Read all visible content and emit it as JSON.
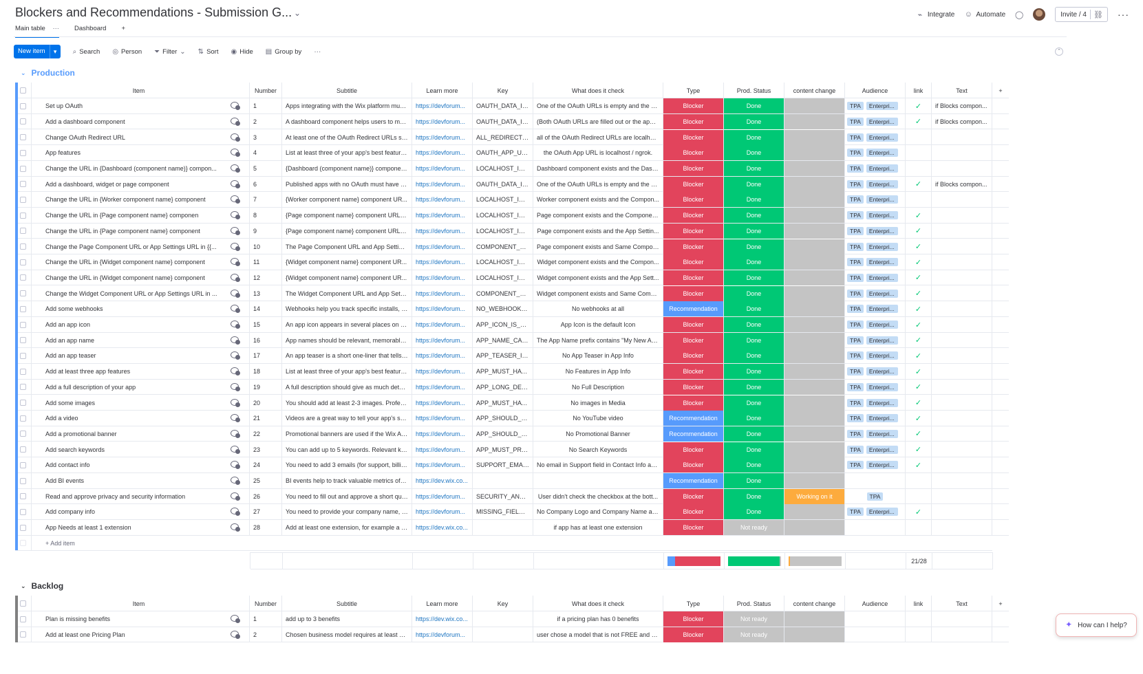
{
  "board": {
    "title": "Blockers and Recommendations - Submission G...",
    "tabs": [
      {
        "label": "Main table"
      },
      {
        "label": "Dashboard"
      }
    ],
    "add_tab": "+"
  },
  "header_actions": {
    "integrate": "Integrate",
    "automate": "Automate",
    "invite": "Invite / 4"
  },
  "toolbar": {
    "new_item": "New item",
    "search": "Search",
    "person": "Person",
    "filter": "Filter",
    "sort": "Sort",
    "hide": "Hide",
    "group_by": "Group by"
  },
  "columns": {
    "item": "Item",
    "number": "Number",
    "subtitle": "Subtitle",
    "learn_more": "Learn more",
    "key": "Key",
    "what": "What does it check",
    "type": "Type",
    "status": "Prod. Status",
    "content": "content change",
    "audience": "Audience",
    "link": "link",
    "text": "Text"
  },
  "colors": {
    "blocker": "#e2445c",
    "recommendation": "#579bfc",
    "done": "#00c875",
    "not_ready": "#c4c4c4",
    "working": "#fdab3d",
    "production_group": "#579bfc",
    "backlog_group": "#808080"
  },
  "production": {
    "title": "Production",
    "add_item": "+ Add item",
    "link_summary": "21/28",
    "type_summary": {
      "recommendation": 4,
      "blocker": 24
    },
    "status_summary": {
      "done": 27,
      "not_ready": 1
    },
    "content_summary": {
      "working": 1,
      "empty": 27
    },
    "rows": [
      {
        "item": "Set up OAuth",
        "num": "1",
        "sub": "Apps integrating with the Wix platform mus...",
        "learn": "https://devforum...",
        "key": "OAUTH_DATA_IS...",
        "what": "One of the OAuth URLs is empty and the a...",
        "type": "Blocker",
        "status": "Done",
        "content": "",
        "aud": [
          "TPA",
          "Enterpri..."
        ],
        "link": "✓",
        "text": "if Blocks compon..."
      },
      {
        "item": "Add a dashboard component",
        "num": "2",
        "sub": "A dashboard component helps users to ma...",
        "learn": "https://devforum...",
        "key": "OAUTH_DATA_IS...",
        "what": "(Both OAuth URLs are filled out or the app ...",
        "type": "Blocker",
        "status": "Done",
        "content": "",
        "aud": [
          "TPA",
          "Enterpri..."
        ],
        "link": "✓",
        "text": "if Blocks compon..."
      },
      {
        "item": "Change OAuth Redirect URL",
        "num": "3",
        "sub": "At least one of the OAuth Redirect URLs sh...",
        "learn": "https://devforum...",
        "key": "ALL_REDIRECT_U...",
        "what": "all of the OAuth Redirect URLs are localhos...",
        "type": "Blocker",
        "status": "Done",
        "content": "",
        "aud": [
          "TPA",
          "Enterpri..."
        ],
        "link": "",
        "text": ""
      },
      {
        "item": "App features",
        "num": "4",
        "sub": "List at least three of your app's best feature...",
        "learn": "https://devforum...",
        "key": "OAUTH_APP_URL...",
        "what": "the OAuth App URL is localhost / ngrok.",
        "type": "Blocker",
        "status": "Done",
        "content": "",
        "aud": [
          "TPA",
          "Enterpri..."
        ],
        "link": "",
        "text": ""
      },
      {
        "item": "Change the URL in {Dashboard (component name)} compon...",
        "num": "5",
        "sub": "{Dashboard (component name)} componen...",
        "learn": "https://devforum...",
        "key": "LOCALHOST_IS_...",
        "what": "Dashboard component exists and the Dash...",
        "type": "Blocker",
        "status": "Done",
        "content": "",
        "aud": [
          "TPA",
          "Enterpri..."
        ],
        "link": "",
        "text": ""
      },
      {
        "item": "Add a dashboard, widget or page component",
        "num": "6",
        "sub": "Published apps with no OAuth must have a ...",
        "learn": "https://devforum...",
        "key": "OAUTH_DATA_IS...",
        "what": "One of the OAuth URLs is empty and the a...",
        "type": "Blocker",
        "status": "Done",
        "content": "",
        "aud": [
          "TPA",
          "Enterpri..."
        ],
        "link": "✓",
        "text": "if Blocks compon..."
      },
      {
        "item": "Change the URL in {Worker component name} component",
        "num": "7",
        "sub": "{Worker component name} component UR...",
        "learn": "https://devforum...",
        "key": "LOCALHOST_IS_...",
        "what": "Worker component exists and the Compon...",
        "type": "Blocker",
        "status": "Done",
        "content": "",
        "aud": [
          "TPA",
          "Enterpri..."
        ],
        "link": "",
        "text": ""
      },
      {
        "item": "Change the URL in {Page component name} componen",
        "num": "8",
        "sub": "{Page component name} component URLs ...",
        "learn": "https://devforum...",
        "key": "LOCALHOST_IS_...",
        "what": "Page component exists and the Componen...",
        "type": "Blocker",
        "status": "Done",
        "content": "",
        "aud": [
          "TPA",
          "Enterpri..."
        ],
        "link": "✓",
        "text": ""
      },
      {
        "item": "Change the URL in {Page component name} component",
        "num": "9",
        "sub": "{Page component name} component URLs ...",
        "learn": "https://devforum...",
        "key": "LOCALHOST_IS_...",
        "what": "Page component exists and the App Settin...",
        "type": "Blocker",
        "status": "Done",
        "content": "",
        "aud": [
          "TPA",
          "Enterpri..."
        ],
        "link": "✓",
        "text": ""
      },
      {
        "item": "Change the Page Component URL or App Settings URL in {{...",
        "num": "10",
        "sub": "The Page Component URL and App Setting...",
        "learn": "https://devforum...",
        "key": "COMPONENT_U...",
        "what": "Page component exists and Same Compon...",
        "type": "Blocker",
        "status": "Done",
        "content": "",
        "aud": [
          "TPA",
          "Enterpri..."
        ],
        "link": "✓",
        "text": ""
      },
      {
        "item": "Change the URL in {Widget component name} component",
        "num": "11",
        "sub": "{Widget component name} component UR...",
        "learn": "https://devforum...",
        "key": "LOCALHOST_IS_...",
        "what": "Widget component exists and the Compon...",
        "type": "Blocker",
        "status": "Done",
        "content": "",
        "aud": [
          "TPA",
          "Enterpri..."
        ],
        "link": "✓",
        "text": ""
      },
      {
        "item": "Change the URL in {Widget component name} component",
        "num": "12",
        "sub": "{Widget component name} component UR...",
        "learn": "https://devforum...",
        "key": "LOCALHOST_IS_...",
        "what": "Widget component exists and the App Sett...",
        "type": "Blocker",
        "status": "Done",
        "content": "",
        "aud": [
          "TPA",
          "Enterpri..."
        ],
        "link": "✓",
        "text": ""
      },
      {
        "item": "Change the Widget Component URL or App Settings URL in ...",
        "num": "13",
        "sub": "The Widget Component URL and App Setti...",
        "learn": "https://devforum...",
        "key": "COMPONENT_U...",
        "what": "Widget component exists and Same Comp...",
        "type": "Blocker",
        "status": "Done",
        "content": "",
        "aud": [
          "TPA",
          "Enterpri..."
        ],
        "link": "✓",
        "text": ""
      },
      {
        "item": "Add some webhooks",
        "num": "14",
        "sub": "Webhooks help you track specific installs, u...",
        "learn": "https://devforum...",
        "key": "NO_WEBHOOKS_...",
        "what": "No webhooks at all",
        "type": "Recommendation",
        "status": "Done",
        "content": "",
        "aud": [
          "TPA",
          "Enterpri..."
        ],
        "link": "✓",
        "text": ""
      },
      {
        "item": "Add an app icon",
        "num": "15",
        "sub": "An app icon appears in several places on th...",
        "learn": "https://devforum...",
        "key": "APP_ICON_IS_MI...",
        "what": "App Icon is the default Icon",
        "type": "Blocker",
        "status": "Done",
        "content": "",
        "aud": [
          "TPA",
          "Enterpri..."
        ],
        "link": "✓",
        "text": ""
      },
      {
        "item": "Add an app name",
        "num": "16",
        "sub": "App names should be relevant, memorable ...",
        "learn": "https://devforum...",
        "key": "APP_NAME_CAN...",
        "what": "The App Name prefix contains \"My New Ap...",
        "type": "Blocker",
        "status": "Done",
        "content": "",
        "aud": [
          "TPA",
          "Enterpri..."
        ],
        "link": "✓",
        "text": ""
      },
      {
        "item": "Add an app teaser",
        "num": "17",
        "sub": "An app teaser is a short one-liner that tells ...",
        "learn": "https://devforum...",
        "key": "APP_TEASER_IS_...",
        "what": "No App Teaser in App Info",
        "type": "Blocker",
        "status": "Done",
        "content": "",
        "aud": [
          "TPA",
          "Enterpri..."
        ],
        "link": "✓",
        "text": ""
      },
      {
        "item": "Add at least three app features",
        "num": "18",
        "sub": "List at least three of your app's best feature...",
        "learn": "https://devforum...",
        "key": "APP_MUST_HAVE...",
        "what": "No Features in App Info",
        "type": "Blocker",
        "status": "Done",
        "content": "",
        "aud": [
          "TPA",
          "Enterpri..."
        ],
        "link": "✓",
        "text": ""
      },
      {
        "item": "Add a full description of your app",
        "num": "19",
        "sub": "A full description should give as much detai...",
        "learn": "https://devforum...",
        "key": "APP_LONG_DESC...",
        "what": "No Full Description",
        "type": "Blocker",
        "status": "Done",
        "content": "",
        "aud": [
          "TPA",
          "Enterpri..."
        ],
        "link": "✓",
        "text": ""
      },
      {
        "item": "Add some images",
        "num": "20",
        "sub": "You should add at least 2-3 images. Professi...",
        "learn": "https://devforum...",
        "key": "APP_MUST_HAVE...",
        "what": "No images in Media",
        "type": "Blocker",
        "status": "Done",
        "content": "",
        "aud": [
          "TPA",
          "Enterpri..."
        ],
        "link": "✓",
        "text": ""
      },
      {
        "item": "Add a video",
        "num": "21",
        "sub": "Videos are a great way to tell your app's sto...",
        "learn": "https://devforum...",
        "key": "APP_SHOULD_PR...",
        "what": "No YouTube video",
        "type": "Recommendation",
        "status": "Done",
        "content": "",
        "aud": [
          "TPA",
          "Enterpri..."
        ],
        "link": "✓",
        "text": ""
      },
      {
        "item": "Add a promotional banner",
        "num": "22",
        "sub": "Promotional banners are used if the Wix Ap...",
        "learn": "https://devforum...",
        "key": "APP_SHOULD_PR...",
        "what": "No Promotional Banner",
        "type": "Recommendation",
        "status": "Done",
        "content": "",
        "aud": [
          "TPA",
          "Enterpri..."
        ],
        "link": "✓",
        "text": ""
      },
      {
        "item": "Add search keywords",
        "num": "23",
        "sub": "You can add up to 5 keywords. Relevant key...",
        "learn": "https://devforum...",
        "key": "APP_MUST_PROV...",
        "what": "No Search Keywords",
        "type": "Blocker",
        "status": "Done",
        "content": "",
        "aud": [
          "TPA",
          "Enterpri..."
        ],
        "link": "✓",
        "text": ""
      },
      {
        "item": "Add contact info",
        "num": "24",
        "sub": "You need to add 3 emails (for support, billin...",
        "learn": "https://devforum...",
        "key": "SUPPORT_EMAIL...",
        "what": "No email in Support field in Contact Info an...",
        "type": "Blocker",
        "status": "Done",
        "content": "",
        "aud": [
          "TPA",
          "Enterpri..."
        ],
        "link": "✓",
        "text": ""
      },
      {
        "item": "Add BI events",
        "num": "25",
        "sub": "BI events help to track valuable metrics of y...",
        "learn": "https://dev.wix.co...",
        "key": "",
        "what": "",
        "type": "Recommendation",
        "status": "Done",
        "content": "",
        "aud": [],
        "link": "",
        "text": ""
      },
      {
        "item": "Read and approve privacy and security information",
        "num": "26",
        "sub": "You need to fill out and approve a short que...",
        "learn": "https://devforum...",
        "key": "SECURITY_AND_...",
        "what": "User didn't check the checkbox at the bott...",
        "type": "Blocker",
        "status": "Done",
        "content": "Working on it",
        "aud": [
          "TPA"
        ],
        "link": "",
        "text": ""
      },
      {
        "item": "Add company info",
        "num": "27",
        "sub": "You need to provide your company name, l...",
        "learn": "https://devforum...",
        "key": "MISSING_FIELDS...",
        "what": "No Company Logo and Company Name an...",
        "type": "Blocker",
        "status": "Done",
        "content": "",
        "aud": [
          "TPA",
          "Enterpri..."
        ],
        "link": "✓",
        "text": ""
      },
      {
        "item": "App Needs at least 1 extension",
        "num": "28",
        "sub": "Add at least one extension, for example a d...",
        "learn": "https://dev.wix.co...",
        "key": "",
        "what": "if app has at least one extension",
        "type": "Blocker",
        "status": "Not ready",
        "content": "",
        "aud": [],
        "link": "",
        "text": ""
      }
    ]
  },
  "backlog": {
    "title": "Backlog",
    "rows": [
      {
        "item": "Plan is missing benefits",
        "num": "1",
        "sub": "add up to 3 benefits",
        "learn": "https://dev.wix.co...",
        "key": "",
        "what": "if a pricing plan has 0 benefits",
        "type": "Blocker",
        "status": "Not ready",
        "content": "",
        "aud": [],
        "link": "",
        "text": ""
      },
      {
        "item": "Add at least one Pricing Plan",
        "num": "2",
        "sub": "Chosen business model requires at least on...",
        "learn": "https://devforum...",
        "key": "",
        "what": "user chose a model that is not FREE and did...",
        "type": "Blocker",
        "status": "Not ready",
        "content": "",
        "aud": [],
        "link": "",
        "text": ""
      }
    ]
  },
  "help": {
    "label": "How can I help?"
  }
}
